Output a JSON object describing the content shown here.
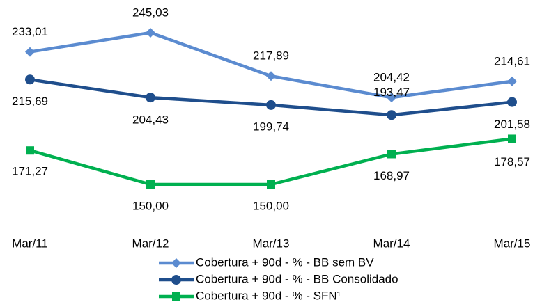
{
  "chart_data": {
    "type": "line",
    "categories": [
      "Mar/11",
      "Mar/12",
      "Mar/13",
      "Mar/14",
      "Mar/15"
    ],
    "series": [
      {
        "name": "Cobertura + 90d - % - BB sem BV",
        "color": "#5b8bd0",
        "marker": "diamond",
        "values": [
          233.01,
          245.03,
          217.89,
          204.42,
          214.61
        ],
        "value_labels": [
          "233,01",
          "245,03",
          "217,89",
          "204,42",
          "214,61"
        ]
      },
      {
        "name": "Cobertura + 90d - % - BB Consolidado",
        "color": "#1f4e8c",
        "marker": "circle",
        "values": [
          215.69,
          204.43,
          199.74,
          193.47,
          201.58
        ],
        "value_labels": [
          "215,69",
          "204,43",
          "199,74",
          "193,47",
          "201,58"
        ]
      },
      {
        "name": "Cobertura + 90d - % - SFN¹",
        "color": "#00b050",
        "marker": "square",
        "values": [
          171.27,
          150.0,
          150.0,
          168.97,
          178.57
        ],
        "value_labels": [
          "171,27",
          "150,00",
          "150,00",
          "168,97",
          "178,57"
        ]
      }
    ],
    "legend": "bottom"
  }
}
